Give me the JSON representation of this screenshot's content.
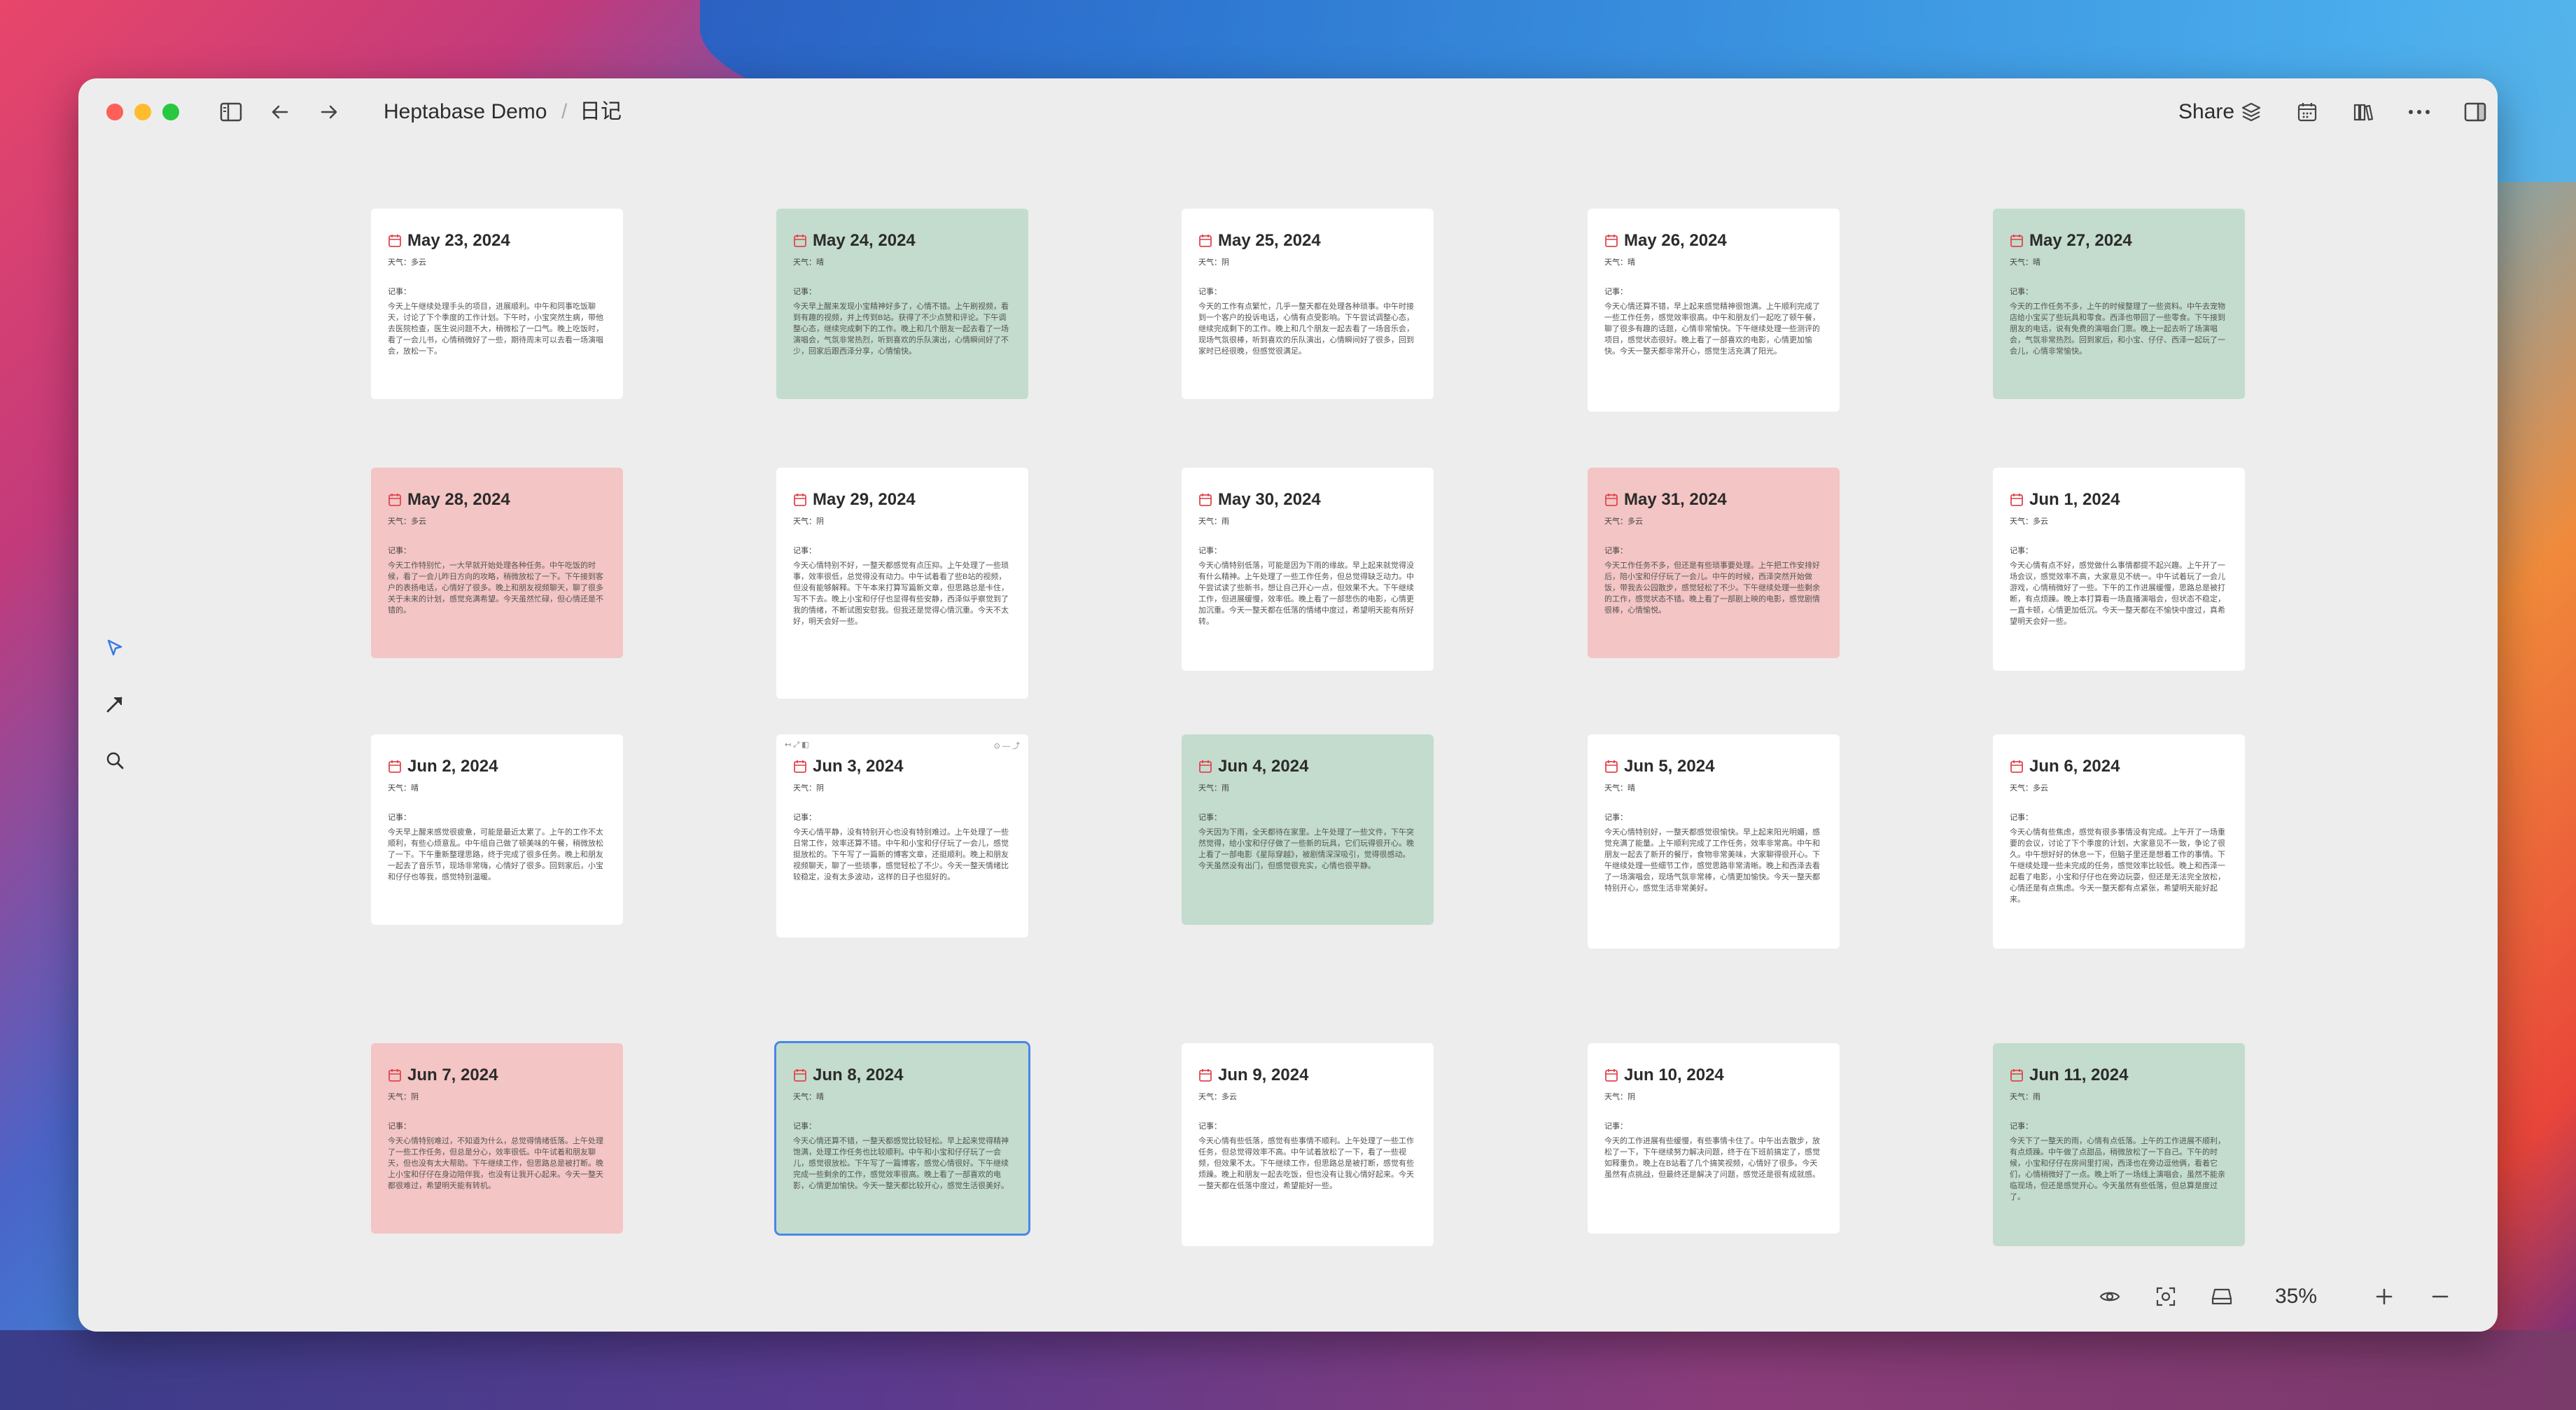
{
  "breadcrumb": {
    "workspace": "Heptabase Demo",
    "separator": "/",
    "page": "日记"
  },
  "header": {
    "share_label": "Share"
  },
  "zoom": {
    "level": "35%"
  },
  "colors": {
    "green": "#c3dccd",
    "pink": "#f3c5c4",
    "white": "#ffffff",
    "selection": "#4a86e8",
    "calendar_icon": "#e0464f"
  },
  "cards": [
    {
      "date": "May 23, 2024",
      "weather": "天气：多云",
      "note_label": "记事：",
      "note": "今天上午继续处理手头的项目，进展顺利。中午和同事吃饭聊天，讨论了下个季度的工作计划。下午时，小宝突然生病，带他去医院检查，医生说问题不大，稍微松了一口气。晚上吃饭时，看了一会儿书，心情稍微好了一些，期待周末可以去看一场演唱会，放松一下。"
    },
    {
      "date": "May 24, 2024",
      "weather": "天气：晴",
      "note_label": "记事：",
      "note": "今天早上醒来发现小宝精神好多了，心情不错。上午刷视频，看到有趣的视频，并上传到B站。获得了不少点赞和评论。下午调整心态，继续完成剩下的工作。晚上和几个朋友一起去看了一场演唱会，气氛非常热烈，听到喜欢的乐队演出，心情瞬间好了不少，回家后跟西泽分享，心情愉快。"
    },
    {
      "date": "May 25, 2024",
      "weather": "天气：阴",
      "note_label": "记事：",
      "note": "今天的工作有点繁忙，几乎一整天都在处理各种琐事。中午时接到一个客户的投诉电话，心情有点受影响。下午尝试调整心态，继续完成剩下的工作。晚上和几个朋友一起去看了一场音乐会，现场气氛很棒，听到喜欢的乐队演出，心情瞬间好了很多，回到家时已经很晚，但感觉很满足。"
    },
    {
      "date": "May 26, 2024",
      "weather": "天气：晴",
      "note_label": "记事：",
      "note": "今天心情还算不错，早上起来感觉精神很饱满。上午顺利完成了一些工作任务，感觉效率很高。中午和朋友们一起吃了顿午餐，聊了很多有趣的话题，心情非常愉快。下午继续处理一些测评的项目，感觉状态很好。晚上看了一部喜欢的电影，心情更加愉快。今天一整天都非常开心，感觉生活充满了阳光。"
    },
    {
      "date": "May 27, 2024",
      "weather": "天气：晴",
      "note_label": "记事：",
      "note": "今天的工作任务不多，上午的时候整理了一些资料。中午去宠物店给小宝买了些玩具和零食。西泽也带回了一些零食。下午接到朋友的电话，说有免费的演唱会门票。晚上一起去听了场演唱会，气氛非常热烈。回到家后，和小宝、仔仔、西泽一起玩了一会儿，心情非常愉快。"
    },
    {
      "date": "May 28, 2024",
      "weather": "天气：多云",
      "note_label": "记事：",
      "note": "今天工作特别忙，一大早就开始处理各种任务。中午吃饭的时候，看了一会儿昨日方向的攻略，稍微放松了一下。下午接到客户的表扬电话，心情好了很多。晚上和朋友视频聊天，聊了很多关于未来的计划，感觉充满希望。今天虽然忙碌，但心情还是不错的。"
    },
    {
      "date": "May 29, 2024",
      "weather": "天气：阴",
      "note_label": "记事：",
      "note": "今天心情特别不好，一整天都感觉有点压抑。上午处理了一些琐事，效率很低，总觉得没有动力。中午试着看了些B站的视频，但没有能够解释。下午本来打算写篇新文章，但思路总是卡住，写不下去。晚上小宝和仔仔也显得有些安静，西泽似乎察觉到了我的情绪，不断试图安慰我。但我还是觉得心情沉重。今天不太好，明天会好一些。"
    },
    {
      "date": "May 30, 2024",
      "weather": "天气：雨",
      "note_label": "记事：",
      "note": "今天心情特别低落，可能是因为下雨的缘故。早上起来就觉得没有什么精神。上午处理了一些工作任务，但总觉得缺乏动力。中午尝试读了些新书，想让自己开心一点，但效果不大。下午继续工作，但进展缓慢，效率低。晚上看了一部悲伤的电影，心情更加沉重。今天一整天都在低落的情绪中度过，希望明天能有所好转。"
    },
    {
      "date": "May 31, 2024",
      "weather": "天气：多云",
      "note_label": "记事：",
      "note": "今天工作任务不多，但还是有些琐事要处理。上午把工作安排好后，陪小宝和仔仔玩了一会儿。中午的时候，西泽突然开始做饭，带我去公园散步，感觉轻松了不少。下午继续处理一些剩余的工作，感觉状态不错。晚上看了一部剧上映的电影，感觉剧情很棒，心情愉悦。"
    },
    {
      "date": "Jun 1, 2024",
      "weather": "天气：多云",
      "note_label": "记事：",
      "note": "今天心情有点不好，感觉做什么事情都提不起兴趣。上午开了一场会议，感觉效率不高，大家意见不统一。中午试着玩了一会儿游戏，心情稍微好了一些。下午的工作进展缓慢，思路总是被打断，有点烦躁。晚上本打算看一场直播演唱会，但状态不稳定，一直卡顿，心情更加低沉。今天一整天都在不愉快中度过，真希望明天会好一些。"
    },
    {
      "date": "Jun 2, 2024",
      "weather": "天气：晴",
      "note_label": "记事：",
      "note": "今天早上醒来感觉很疲惫，可能是最近太累了。上午的工作不太顺利，有些心烦意乱。中午组自己做了顿美味的午餐，稍微放松了一下。下午重新整理思路，终于完成了很多任务。晚上和朋友一起去了音乐节，现场非常嗨，心情好了很多。回到家后，小宝和仔仔也等我，感觉特别温暖。"
    },
    {
      "date": "Jun 3, 2024",
      "weather": "天气：阴",
      "note_label": "记事：",
      "note": "今天心情平静，没有特别开心也没有特别难过。上午处理了一些日常工作，效率还算不错。中午和小宝和仔仔玩了一会儿，感觉挺放松的。下午写了一篇新的博客文章，还挺顺利。晚上和朋友视频聊天，聊了一些琐事，感觉轻松了不少。今天一整天情绪比较稳定，没有太多波动，这样的日子也挺好的。"
    },
    {
      "date": "Jun 4, 2024",
      "weather": "天气：雨",
      "note_label": "记事：",
      "note": "今天因为下雨，全天都待在家里。上午处理了一些文件，下午突然觉得，给小宝和仔仔做了一些新的玩具，它们玩得很开心。晚上看了一部电影《星际穿越》，被剧情深深吸引，觉得很感动。今天虽然没有出门，但感觉很充实，心情也很平静。"
    },
    {
      "date": "Jun 5, 2024",
      "weather": "天气：晴",
      "note_label": "记事：",
      "note": "今天心情特别好，一整天都感觉很愉快。早上起来阳光明媚，感觉充满了能量。上午顺利完成了工作任务，效率非常高。中午和朋友一起去了新开的餐厅，食物非常美味，大家聊得很开心。下午继续处理一些细节工作，感觉思路非常清晰。晚上和西泽去看了一场演唱会，现场气氛非常棒，心情更加愉快。今天一整天都特别开心，感觉生活非常美好。"
    },
    {
      "date": "Jun 6, 2024",
      "weather": "天气：多云",
      "note_label": "记事：",
      "note": "今天心情有些焦虑，感觉有很多事情没有完成。上午开了一场重要的会议，讨论了下个季度的计划，大家意见不一致，争论了很久。中午想好好的休息一下，但脑子里还是想着工作的事情。下午继续处理一些未完成的任务，感觉效率比较低。晚上和西泽一起看了电影，小宝和仔仔也在旁边玩耍，但还是无法完全放松，心情还是有点焦虑。今天一整天都有点紧张，希望明天能好起来。"
    },
    {
      "date": "Jun 7, 2024",
      "weather": "天气：阴",
      "note_label": "记事：",
      "note": "今天心情特别难过，不知道为什么，总觉得情绪低落。上午处理了一些工作任务，但总是分心，效率很低。中午试着和朋友聊天，但也没有太大帮助。下午继续工作，但思路总是被打断。晚上小宝和仔仔在身边陪伴我，也没有让我开心起来。今天一整天都很难过，希望明天能有转机。"
    },
    {
      "date": "Jun 8, 2024",
      "weather": "天气：晴",
      "note_label": "记事：",
      "note": "今天心情还算不错，一整天都感觉比较轻松。早上起来觉得精神饱满，处理工作任务也比较顺利。中午和小宝和仔仔玩了一会儿，感觉很放松。下午写了一篇博客，感觉心情很好。下午继续完成一些剩余的工作，感觉效率很高。晚上看了一部喜欢的电影，心情更加愉快。今天一整天都比较开心，感觉生活很美好。"
    },
    {
      "date": "Jun 9, 2024",
      "weather": "天气：多云",
      "note_label": "记事：",
      "note": "今天心情有些低落，感觉有些事情不顺利。上午处理了一些工作任务，但总觉得效率不高。中午试着放松了一下，看了一些视频，但效果不太。下午继续工作，但思路总是被打断，感觉有些烦躁。晚上和朋友一起去吃饭，但也没有让我心情好起来。今天一整天都在低落中度过，希望能好一些。"
    },
    {
      "date": "Jun 10, 2024",
      "weather": "天气：阴",
      "note_label": "记事：",
      "note": "今天的工作进展有些缓慢，有些事情卡住了。中午出去散步，放松了一下，下午继续努力解决问题，终于在下班前搞定了，感觉如释重负。晚上在B站看了几个搞笑视频，心情好了很多。今天虽然有点挑战，但最终还是解决了问题，感觉还是很有成就感。"
    },
    {
      "date": "Jun 11, 2024",
      "weather": "天气：雨",
      "note_label": "记事：",
      "note": "今天下了一整天的雨，心情有点低落。上午的工作进展不顺利，有点烦躁。中午做了点甜品，稍微放松了一下自己。下午的时候，小宝和仔仔在房间里打闹，西泽也在旁边逗他俩，看着它们，心情稍微好了一点。晚上听了一场线上演唱会，虽然不能亲临现场，但还是感觉开心。今天虽然有些低落，但总算是度过了。"
    }
  ]
}
